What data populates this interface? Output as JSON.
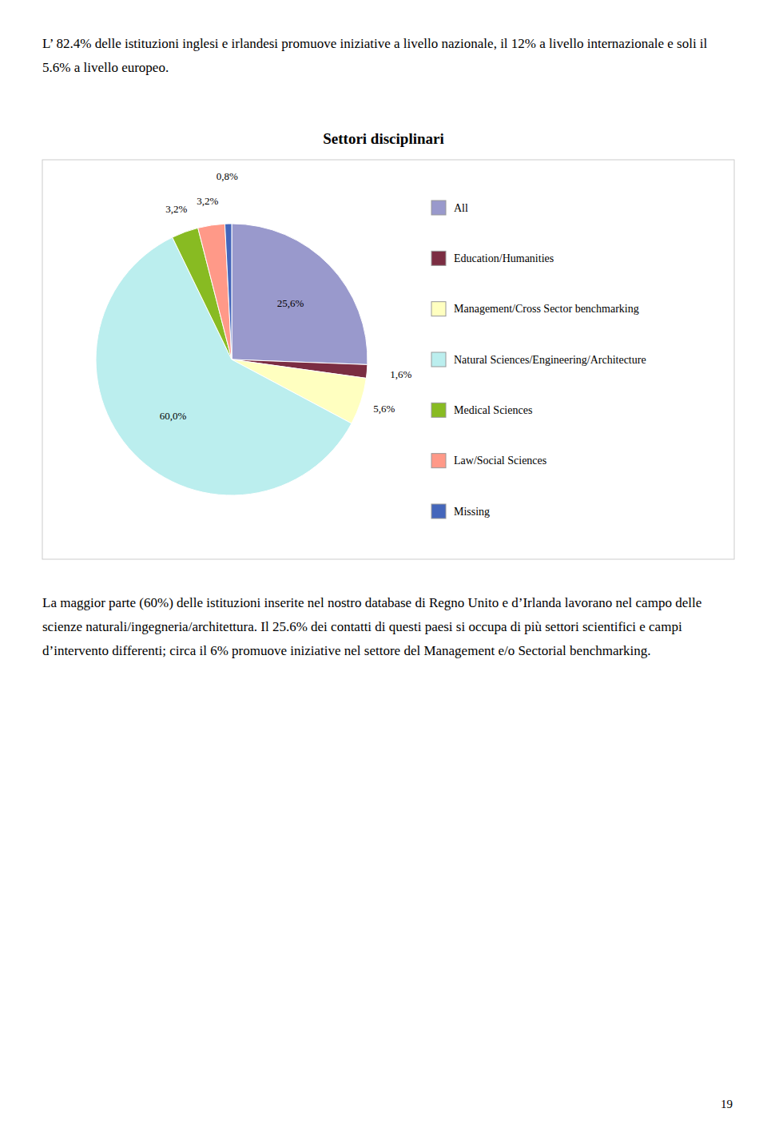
{
  "header_text": "L’ 82.4% delle istituzioni inglesi e irlandesi promuove iniziative a livello nazionale, il 12% a livello internazionale e soli il 5.6% a livello europeo.",
  "chart_data": {
    "type": "pie",
    "title": "Settori disciplinari",
    "categories": [
      "All",
      "Education/Humanities",
      "Management/Cross Sector benchmarking",
      "Natural Sciences/Engineering/Architecture",
      "Medical Sciences",
      "Law/Social Sciences",
      "Missing"
    ],
    "values": [
      25.6,
      1.6,
      5.6,
      60.0,
      3.2,
      3.2,
      0.8
    ],
    "value_labels": [
      "25,6%",
      "1,6%",
      "5,6%",
      "60,0%",
      "3,2%",
      "3,2%",
      "0,8%"
    ],
    "colors": [
      "#9999CC",
      "#7B2D42",
      "#FFFFC0",
      "#BBEEEE",
      "#88BB22",
      "#FF9988",
      "#4466BB"
    ],
    "data_labels": true,
    "legend": "right"
  },
  "body_text": "La maggior parte (60%) delle istituzioni inserite nel nostro database di Regno Unito e d’Irlanda lavorano nel campo delle scienze naturali/ingegneria/architettura. Il 25.6% dei contatti di questi paesi si occupa di più settori scientifici e campi d’intervento differenti; circa il 6% promuove iniziative nel settore del Management e/o Sectorial benchmarking.",
  "page_number": "19"
}
